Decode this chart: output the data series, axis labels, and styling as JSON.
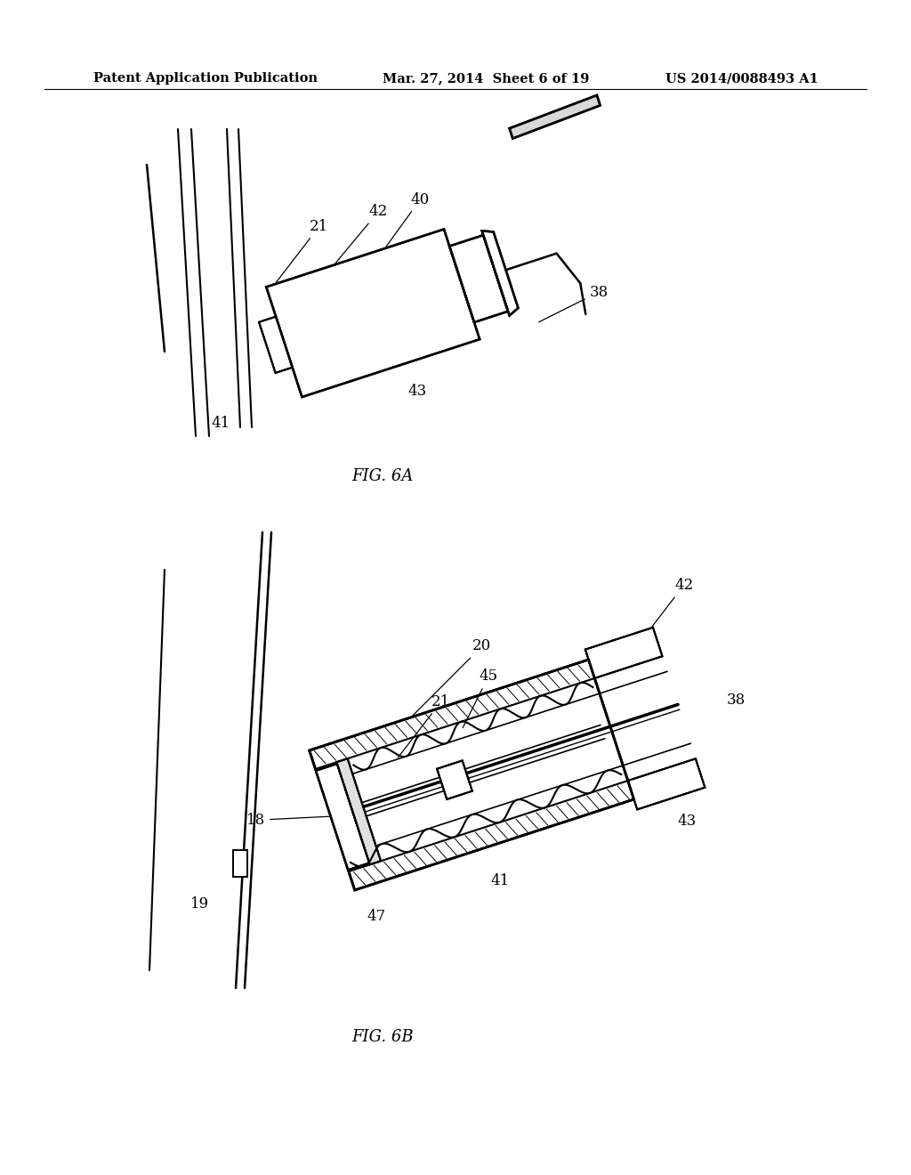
{
  "bg_color": "#ffffff",
  "header_left": "Patent Application Publication",
  "header_center": "Mar. 27, 2014  Sheet 6 of 19",
  "header_right": "US 2014/0088493 A1",
  "fig6a_label": "FIG. 6A",
  "fig6b_label": "FIG. 6B",
  "line_color": "#000000",
  "text_color": "#000000",
  "tilt_deg": -18
}
